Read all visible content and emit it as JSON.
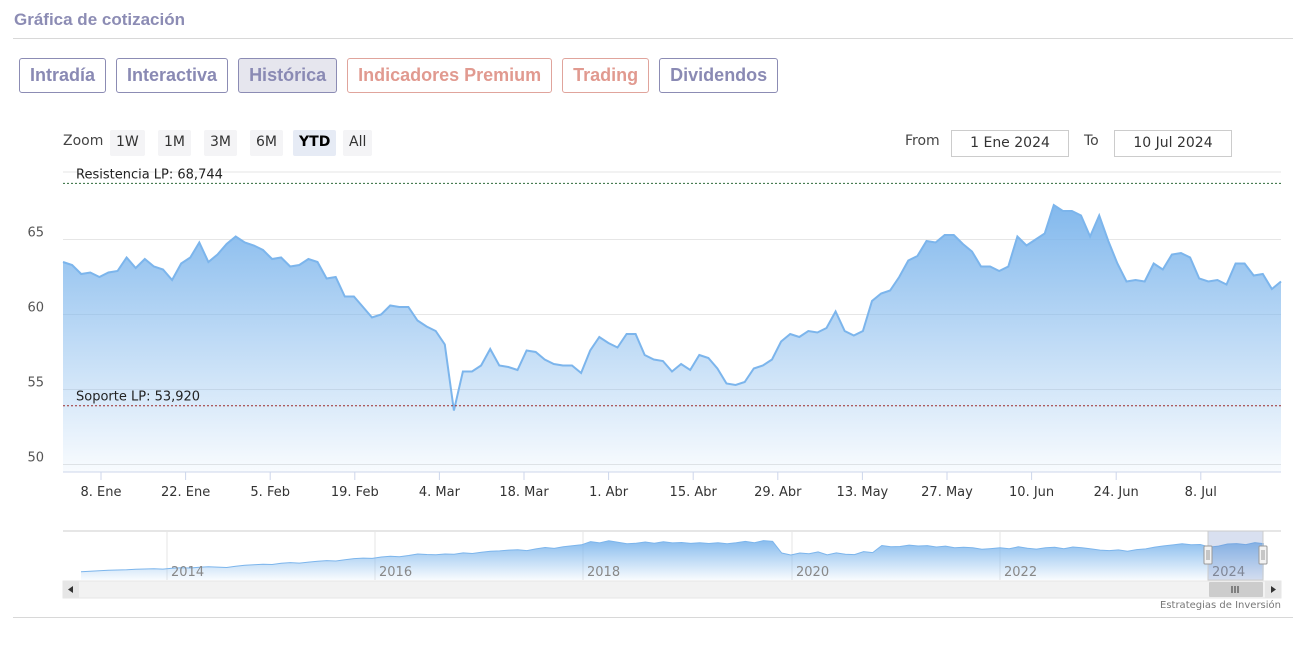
{
  "page": {
    "title": "Gráfica de cotización",
    "credits": "Estrategias de Inversión"
  },
  "tabs": [
    {
      "label": "Intradía",
      "state": "normal"
    },
    {
      "label": "Interactiva",
      "state": "normal"
    },
    {
      "label": "Histórica",
      "state": "active"
    },
    {
      "label": "Indicadores Premium",
      "state": "premium"
    },
    {
      "label": "Trading",
      "state": "premium"
    },
    {
      "label": "Dividendos",
      "state": "normal"
    }
  ],
  "range_selector": {
    "zoom_label": "Zoom",
    "buttons": [
      "1W",
      "1M",
      "3M",
      "6M",
      "YTD",
      "All"
    ],
    "selected": "YTD",
    "from_label": "From",
    "from_value": "1 Ene 2024",
    "to_label": "To",
    "to_value": "10 Jul 2024"
  },
  "colors": {
    "line": "#7cb5ec",
    "fill_top": "#7cb5ec",
    "resistance": "#2e6b3a",
    "support": "#9b2c2c",
    "accent": "#8c8cb4",
    "premium": "#e19a90"
  },
  "chart_data": {
    "type": "area",
    "series": [
      {
        "values": [
          63.5,
          63.3,
          62.7,
          62.8,
          62.5,
          62.8,
          62.9,
          63.8,
          63.1,
          63.7,
          63.2,
          63.0,
          62.3,
          63.4,
          63.8,
          64.8,
          63.5,
          64.0,
          64.7,
          65.2,
          64.8,
          64.6,
          64.3,
          63.7,
          63.8,
          63.2,
          63.3,
          63.7,
          63.5,
          62.4,
          62.5,
          61.2,
          61.2,
          60.5,
          59.8,
          60.0,
          60.6,
          60.5,
          60.5,
          59.6,
          59.2,
          58.9,
          58.0,
          53.6,
          56.2,
          56.2,
          56.6,
          57.7,
          56.6,
          56.5,
          56.3,
          57.6,
          57.5,
          57.0,
          56.7,
          56.6,
          56.6,
          56.1,
          57.6,
          58.5,
          58.1,
          57.8,
          58.7,
          58.7,
          57.3,
          57.0,
          56.9,
          56.2,
          56.7,
          56.3,
          57.3,
          57.1,
          56.4,
          55.4,
          55.3,
          55.5,
          56.4,
          56.6,
          57.0,
          58.2,
          58.7,
          58.5,
          58.9,
          58.8,
          59.1,
          60.2,
          58.9,
          58.6,
          58.9,
          60.9,
          61.4,
          61.6,
          62.5,
          63.6,
          63.9,
          64.9,
          64.8,
          65.3,
          65.3,
          64.7,
          64.2,
          63.2,
          63.2,
          62.9,
          63.2,
          65.2,
          64.6,
          65.0,
          65.4,
          67.3,
          66.9,
          66.9,
          66.6,
          65.2,
          66.6,
          64.9,
          63.4,
          62.2,
          62.3,
          62.2,
          63.4,
          63.0,
          64.0,
          64.1,
          63.8,
          62.4,
          62.2,
          62.3,
          62.0,
          63.4,
          63.4,
          62.6,
          62.7,
          61.7,
          62.2
        ]
      }
    ],
    "x_ticks": [
      "8. Ene",
      "22. Ene",
      "5. Feb",
      "19. Feb",
      "4. Mar",
      "18. Mar",
      "1. Abr",
      "15. Abr",
      "29. Abr",
      "13. May",
      "27. May",
      "10. Jun",
      "24. Jun",
      "8. Jul"
    ],
    "y_ticks": [
      50,
      55,
      60,
      65
    ],
    "ylim": [
      49.5,
      69.5
    ],
    "plot_lines": [
      {
        "label": "Resistencia LP: 68,744",
        "value": 68.744
      },
      {
        "label": "Soporte LP: 53,920",
        "value": 53.92
      }
    ],
    "navigator": {
      "year_labels": [
        "2014",
        "2016",
        "2018",
        "2020",
        "2022",
        "2024"
      ],
      "values": [
        20,
        20.5,
        21,
        21.6,
        21.8,
        22,
        22.5,
        22.8,
        23,
        22.7,
        23.5,
        24,
        23.8,
        24.5,
        25,
        24.6,
        24.2,
        25.5,
        26.4,
        27,
        27.5,
        27.2,
        28.5,
        29,
        28.6,
        29.5,
        30.4,
        31,
        30.6,
        31.8,
        33,
        33.5,
        33.2,
        34.5,
        35.2,
        34.8,
        36,
        37.5,
        37,
        36.8,
        37.5,
        37.2,
        38.5,
        38,
        39.2,
        40.2,
        40.5,
        41.3,
        41.6,
        40.8,
        42.5,
        43.8,
        43,
        44.5,
        45.5,
        46.5,
        49.6,
        48.3,
        50.5,
        49,
        47.5,
        48,
        49.2,
        48,
        49.5,
        48.3,
        48.7,
        47.9,
        48.5,
        47.8,
        48.5,
        47.6,
        48.4,
        49.8,
        48.5,
        50.6,
        49.8,
        38.4,
        36.5,
        38.4,
        37.8,
        39.5,
        36.6,
        38.5,
        37.2,
        36.9,
        39.8,
        38.8,
        45.8,
        44.6,
        44.8,
        46.2,
        45.3,
        45.7,
        44.3,
        45.2,
        43.5,
        44,
        43.6,
        42.2,
        42.8,
        43.5,
        42.6,
        44.5,
        43.1,
        42.3,
        43.5,
        44,
        42.6,
        44.3,
        43.6,
        42.5,
        41.3,
        40.8,
        41.5,
        40.2,
        41.8,
        42.5,
        44.2,
        45.4,
        46.4,
        47.5,
        46.6,
        46.8,
        44.2,
        45.2,
        47.3,
        47.7,
        46.7,
        48.6,
        47.5
      ],
      "selection": "YTD"
    }
  }
}
